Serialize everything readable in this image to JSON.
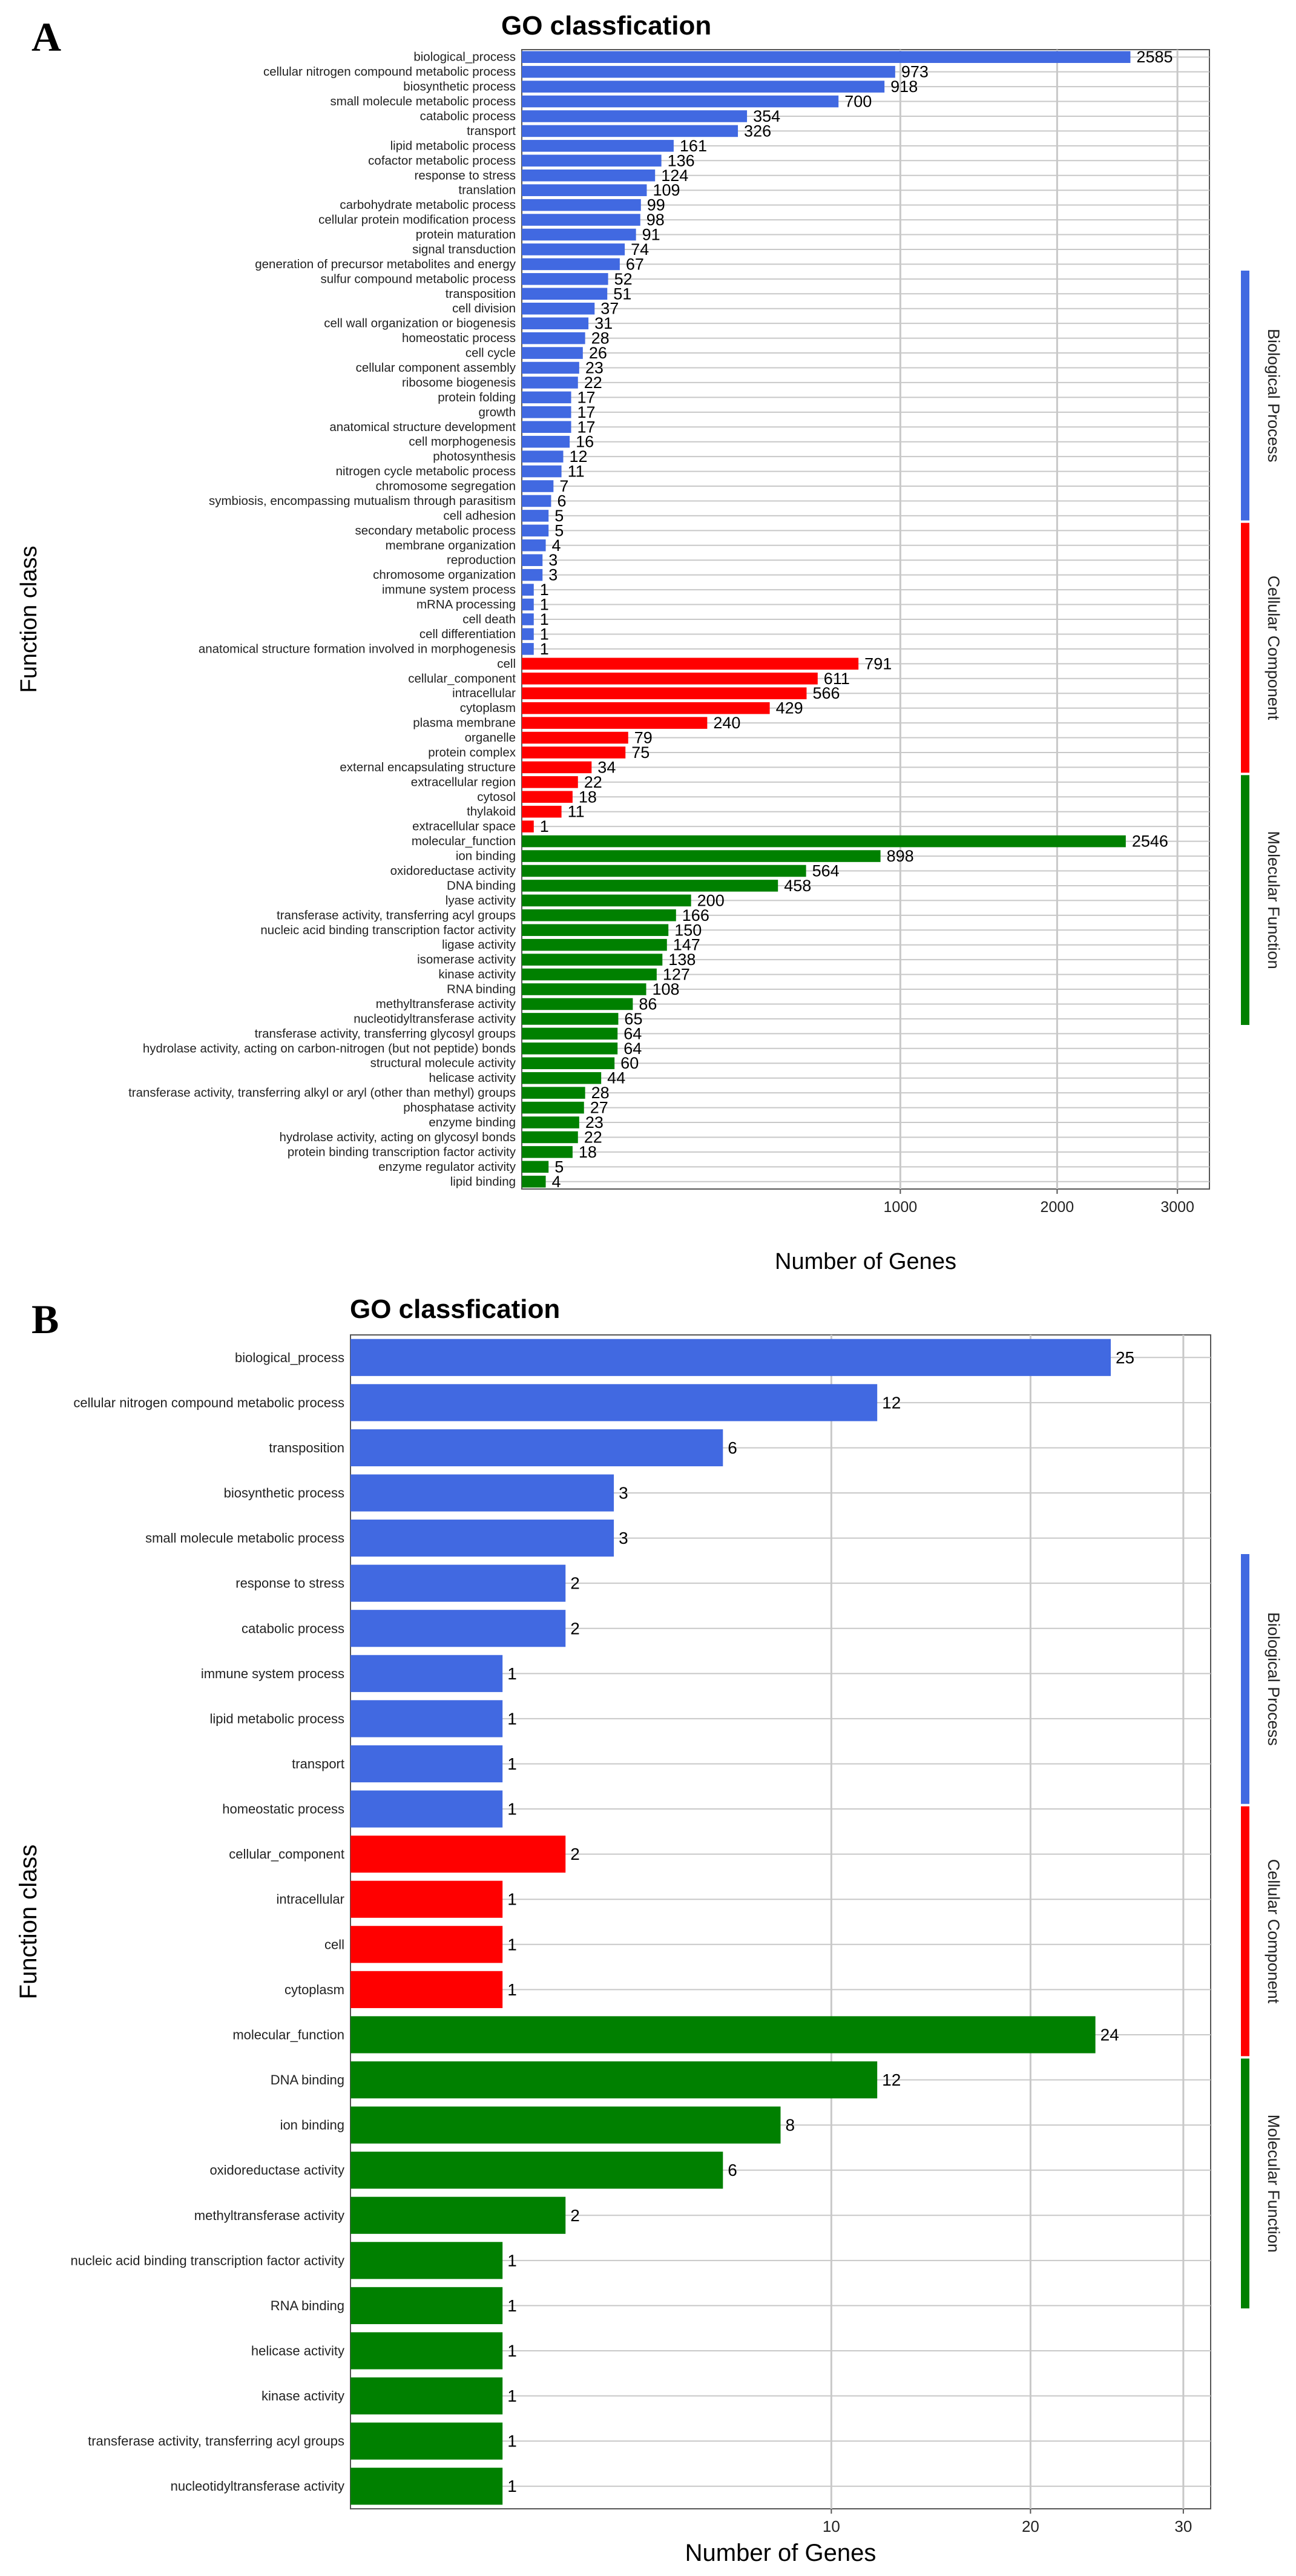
{
  "chart_data": [
    {
      "panel_label": "A",
      "type": "bar",
      "orientation": "horizontal",
      "title": "GO classfication",
      "xlabel": "Number of Genes",
      "ylabel": "Function class",
      "x_scale": "sqrt",
      "xlim": [
        0,
        3300
      ],
      "x_ticks": [
        1000,
        2000,
        3000
      ],
      "grid": true,
      "legend_position": "right strip",
      "groups": [
        {
          "name": "Biological Process",
          "color": "#4169E1",
          "categories": [
            [
              "biological_process",
              2585
            ],
            [
              "cellular nitrogen compound metabolic process",
              973
            ],
            [
              "biosynthetic process",
              918
            ],
            [
              "small molecule metabolic process",
              700
            ],
            [
              "catabolic process",
              354
            ],
            [
              "transport",
              326
            ],
            [
              "lipid metabolic process",
              161
            ],
            [
              "cofactor metabolic process",
              136
            ],
            [
              "response to stress",
              124
            ],
            [
              "translation",
              109
            ],
            [
              "carbohydrate metabolic process",
              99
            ],
            [
              "cellular protein modification process",
              98
            ],
            [
              "protein maturation",
              91
            ],
            [
              "signal transduction",
              74
            ],
            [
              "generation of precursor metabolites and energy",
              67
            ],
            [
              "sulfur compound metabolic process",
              52
            ],
            [
              "transposition",
              51
            ],
            [
              "cell division",
              37
            ],
            [
              "cell wall organization or biogenesis",
              31
            ],
            [
              "homeostatic process",
              28
            ],
            [
              "cell cycle",
              26
            ],
            [
              "cellular component assembly",
              23
            ],
            [
              "ribosome biogenesis",
              22
            ],
            [
              "protein folding",
              17
            ],
            [
              "growth",
              17
            ],
            [
              "anatomical structure development",
              17
            ],
            [
              "cell morphogenesis",
              16
            ],
            [
              "photosynthesis",
              12
            ],
            [
              "nitrogen cycle metabolic process",
              11
            ],
            [
              "chromosome segregation",
              7
            ],
            [
              "symbiosis, encompassing mutualism through parasitism",
              6
            ],
            [
              "cell adhesion",
              5
            ],
            [
              "secondary metabolic process",
              5
            ],
            [
              "membrane organization",
              4
            ],
            [
              "reproduction",
              3
            ],
            [
              "chromosome organization",
              3
            ],
            [
              "immune system process",
              1
            ],
            [
              "mRNA processing",
              1
            ],
            [
              "cell death",
              1
            ],
            [
              "cell differentiation",
              1
            ],
            [
              "anatomical structure formation involved in morphogenesis",
              1
            ]
          ]
        },
        {
          "name": "Cellular Component",
          "color": "#FF0000",
          "categories": [
            [
              "cell",
              791
            ],
            [
              "cellular_component",
              611
            ],
            [
              "intracellular",
              566
            ],
            [
              "cytoplasm",
              429
            ],
            [
              "plasma membrane",
              240
            ],
            [
              "organelle",
              79
            ],
            [
              "protein complex",
              75
            ],
            [
              "external encapsulating structure",
              34
            ],
            [
              "extracellular region",
              22
            ],
            [
              "cytosol",
              18
            ],
            [
              "thylakoid",
              11
            ],
            [
              "extracellular space",
              1
            ]
          ]
        },
        {
          "name": "Molecular Function",
          "color": "#008000",
          "categories": [
            [
              "molecular_function",
              2546
            ],
            [
              "ion binding",
              898
            ],
            [
              "oxidoreductase activity",
              564
            ],
            [
              "DNA binding",
              458
            ],
            [
              "lyase activity",
              200
            ],
            [
              "transferase activity, transferring acyl groups",
              166
            ],
            [
              "nucleic acid binding transcription factor activity",
              150
            ],
            [
              "ligase activity",
              147
            ],
            [
              "isomerase activity",
              138
            ],
            [
              "kinase activity",
              127
            ],
            [
              "RNA binding",
              108
            ],
            [
              "methyltransferase activity",
              86
            ],
            [
              "nucleotidyltransferase activity",
              65
            ],
            [
              "transferase activity, transferring glycosyl groups",
              64
            ],
            [
              "hydrolase activity, acting on carbon-nitrogen (but not peptide) bonds",
              64
            ],
            [
              "structural molecule activity",
              60
            ],
            [
              "helicase activity",
              44
            ],
            [
              "transferase activity, transferring alkyl or aryl (other than methyl) groups",
              28
            ],
            [
              "phosphatase activity",
              27
            ],
            [
              "enzyme binding",
              23
            ],
            [
              "hydrolase activity, acting on glycosyl bonds",
              22
            ],
            [
              "protein binding transcription factor activity",
              18
            ],
            [
              "enzyme regulator activity",
              5
            ],
            [
              "lipid binding",
              4
            ]
          ]
        }
      ]
    },
    {
      "panel_label": "B",
      "type": "bar",
      "orientation": "horizontal",
      "title": "GO classfication",
      "xlabel": "Number of Genes",
      "ylabel": "Function class",
      "x_scale": "sqrt",
      "xlim": [
        0,
        32
      ],
      "x_ticks": [
        10,
        20,
        30
      ],
      "grid": true,
      "legend_position": "right strip",
      "groups": [
        {
          "name": "Biological Process",
          "color": "#4169E1",
          "categories": [
            [
              "biological_process",
              25
            ],
            [
              "cellular nitrogen compound metabolic process",
              12
            ],
            [
              "transposition",
              6
            ],
            [
              "biosynthetic process",
              3
            ],
            [
              "small molecule metabolic process",
              3
            ],
            [
              "response to stress",
              2
            ],
            [
              "catabolic process",
              2
            ],
            [
              "immune system process",
              1
            ],
            [
              "lipid metabolic process",
              1
            ],
            [
              "transport",
              1
            ],
            [
              "homeostatic process",
              1
            ]
          ]
        },
        {
          "name": "Cellular Component",
          "color": "#FF0000",
          "categories": [
            [
              "cellular_component",
              2
            ],
            [
              "intracellular",
              1
            ],
            [
              "cell",
              1
            ],
            [
              "cytoplasm",
              1
            ]
          ]
        },
        {
          "name": "Molecular Function",
          "color": "#008000",
          "categories": [
            [
              "molecular_function",
              24
            ],
            [
              "DNA binding",
              12
            ],
            [
              "ion binding",
              8
            ],
            [
              "oxidoreductase activity",
              6
            ],
            [
              "methyltransferase activity",
              2
            ],
            [
              "nucleic acid binding transcription factor activity",
              1
            ],
            [
              "RNA binding",
              1
            ],
            [
              "helicase activity",
              1
            ],
            [
              "kinase activity",
              1
            ],
            [
              "transferase activity, transferring acyl groups",
              1
            ],
            [
              "nucleotidyltransferase activity",
              1
            ]
          ]
        }
      ]
    }
  ]
}
